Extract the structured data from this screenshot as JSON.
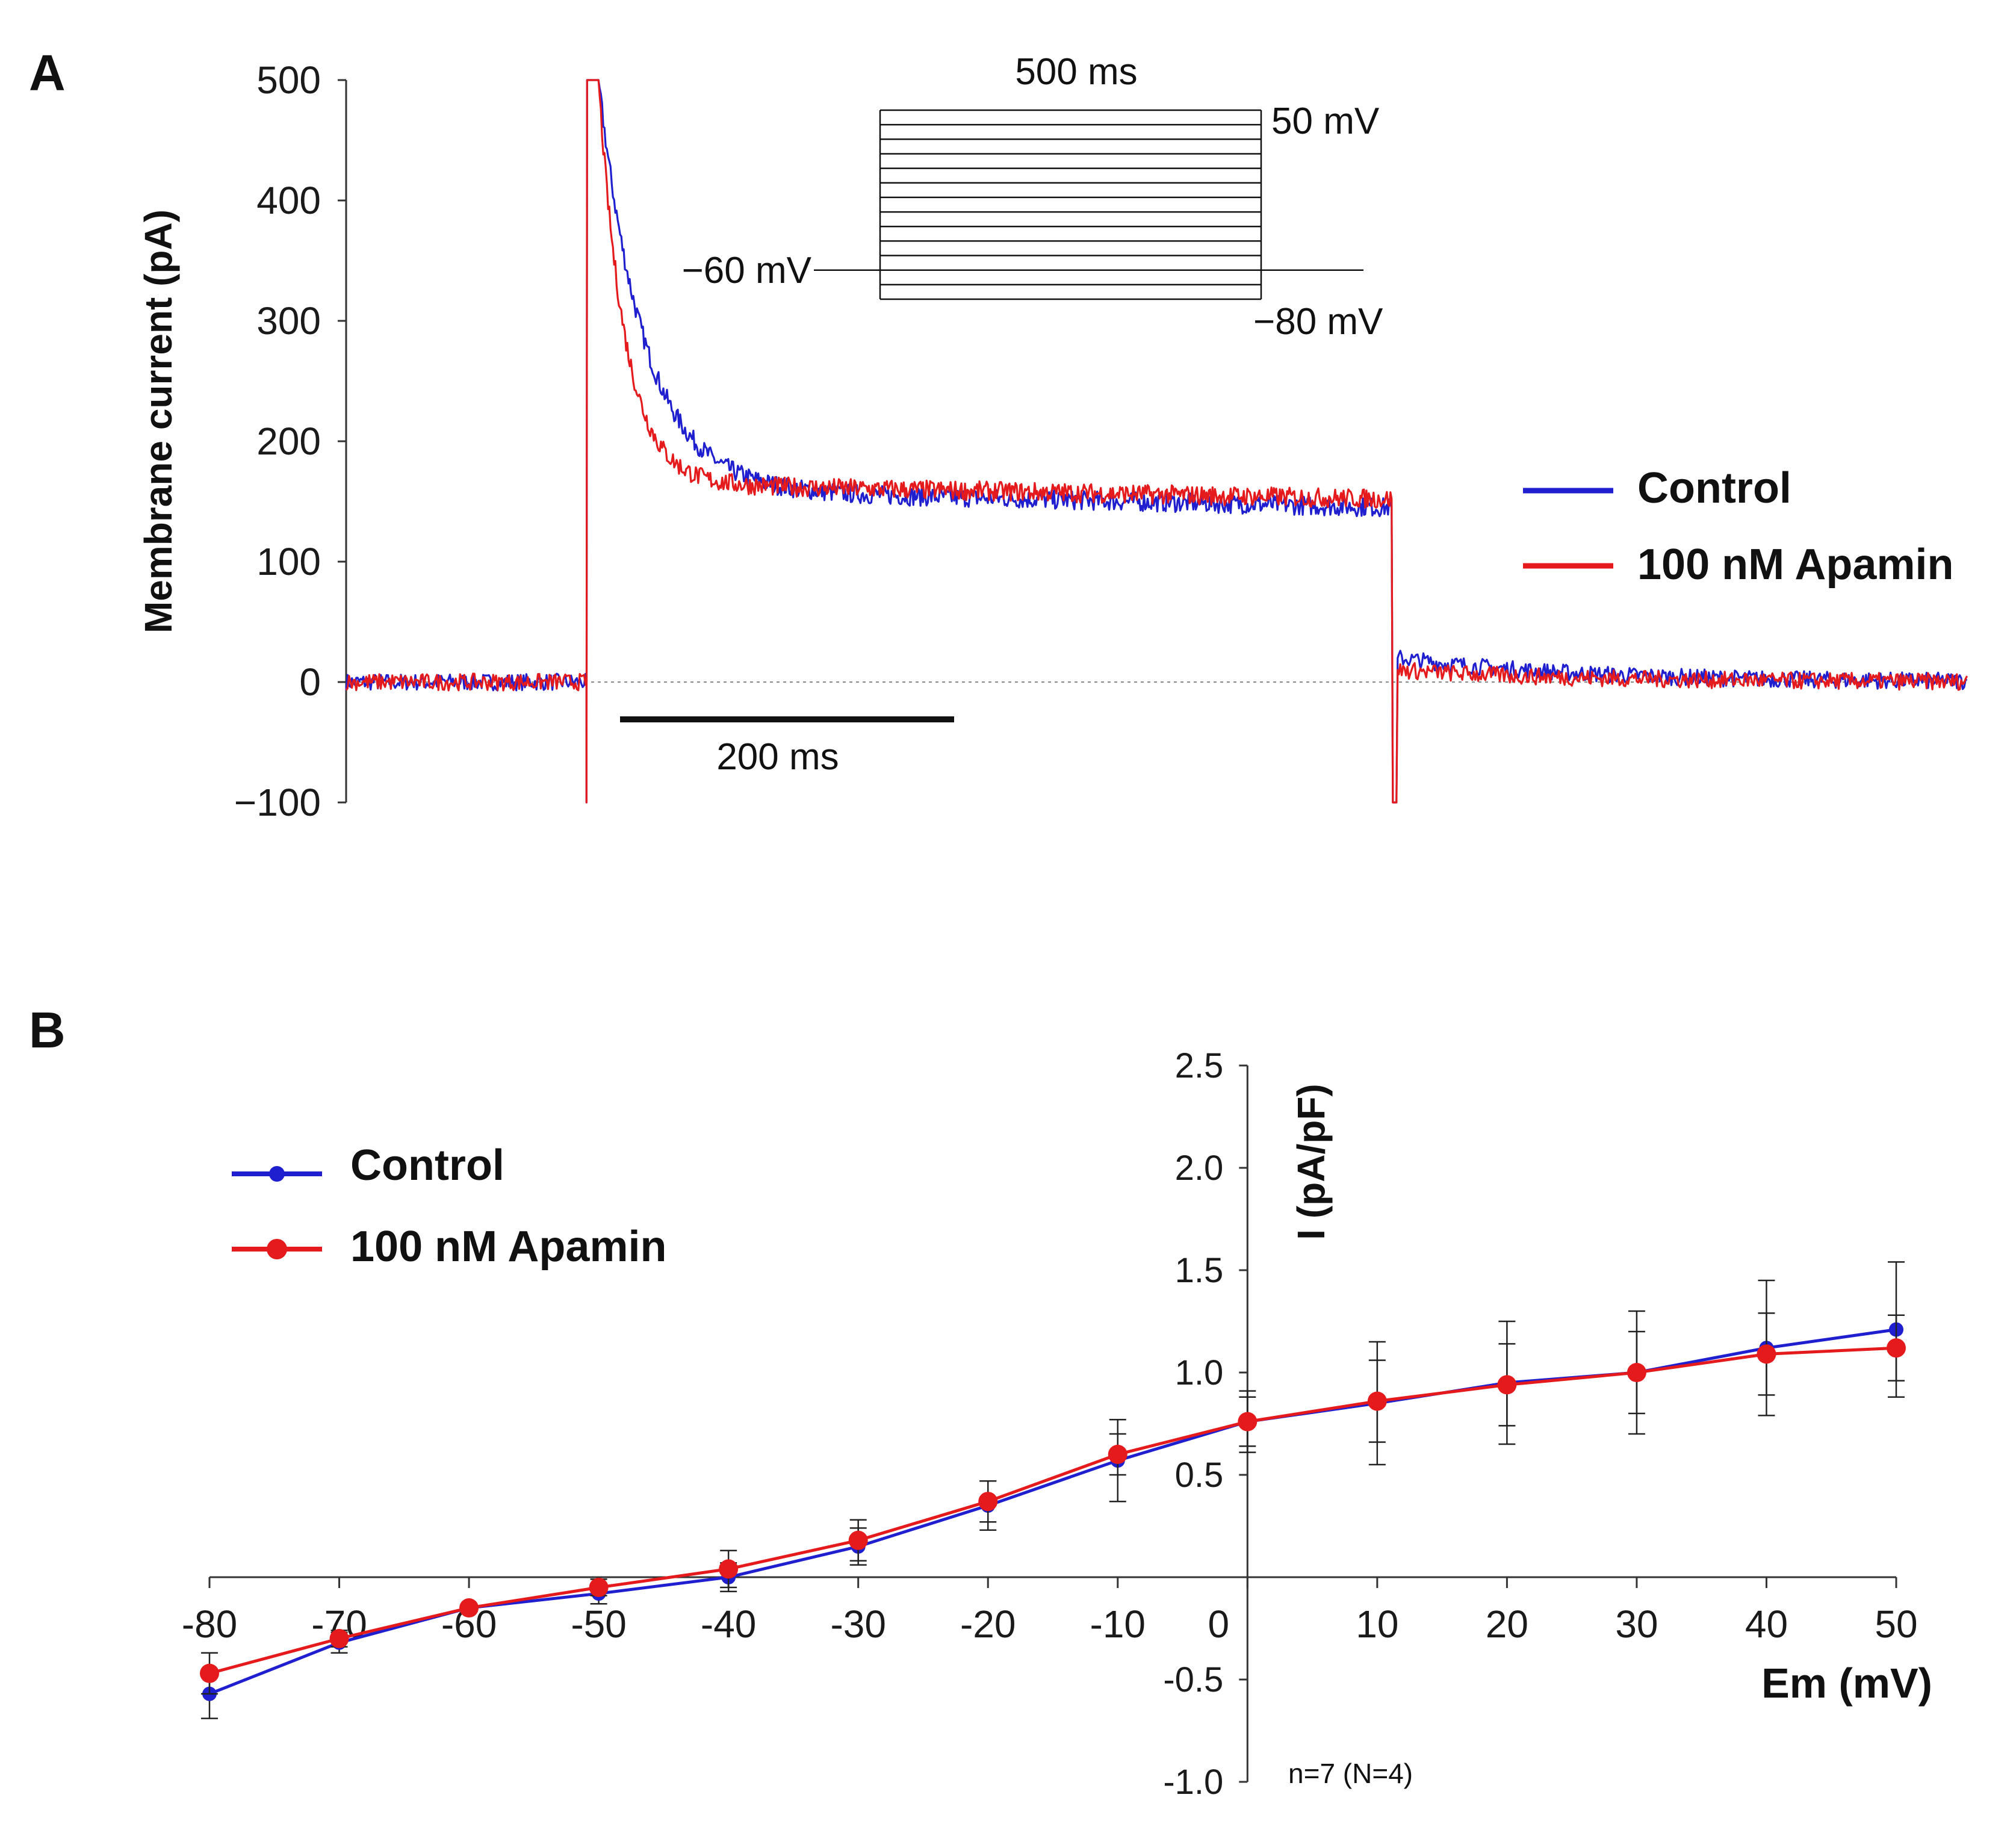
{
  "colors": {
    "control": "#1f1fd0",
    "apamin": "#e41a1c",
    "axis": "#333333",
    "ink": "#111111"
  },
  "panel_a": {
    "label": "A",
    "chart_data": {
      "type": "line",
      "ylabel": "Membrane current (pA)",
      "ylim": [
        -100,
        500
      ],
      "yticks": [
        500,
        400,
        300,
        200,
        100,
        0,
        -100
      ],
      "time_range_ms": [
        0,
        1350
      ],
      "pulse_on_ms": 200,
      "pulse_off_ms": 870,
      "series": [
        {
          "name": "Control",
          "color_key": "control",
          "peak": 500,
          "steady_early": 160,
          "steady_late": 145,
          "tail_peak": 20,
          "negative_spike": -100
        },
        {
          "name": "100 nM Apamin",
          "color_key": "apamin",
          "peak": 500,
          "steady_early": 165,
          "steady_late": 152,
          "tail_peak": 10,
          "negative_spike": -100
        }
      ],
      "scalebar_label": "200 ms",
      "inset": {
        "top_label": "500 ms",
        "max_label": "50 mV",
        "hold_label": "−60 mV",
        "min_label": "−80 mV",
        "steps_mv": [
          50,
          40,
          30,
          20,
          10,
          0,
          -10,
          -20,
          -30,
          -40,
          -50,
          -60,
          -70,
          -80
        ]
      }
    },
    "legend": [
      {
        "label": "Control",
        "color_key": "control"
      },
      {
        "label": "100 nM Apamin",
        "color_key": "apamin"
      }
    ]
  },
  "panel_b": {
    "label": "B",
    "chart_data": {
      "type": "line",
      "xlabel": "Em (mV)",
      "ylabel": "I (pA/pF)",
      "xlim": [
        -80,
        50
      ],
      "ylim": [
        -1.0,
        2.5
      ],
      "xticks": [
        "-80",
        "-70",
        "-60",
        "-50",
        "-40",
        "-30",
        "-20",
        "-10",
        "0",
        "10",
        "20",
        "30",
        "40",
        "50"
      ],
      "yticks": [
        "2.5",
        "2.0",
        "1.5",
        "1.0",
        "0.5",
        "-0.5",
        "-1.0"
      ],
      "x": [
        -80,
        -70,
        -60,
        -50,
        -40,
        -30,
        -20,
        -10,
        0,
        10,
        20,
        30,
        40,
        50
      ],
      "series": [
        {
          "name": "Control",
          "color_key": "control",
          "values": [
            -0.57,
            -0.32,
            -0.15,
            -0.08,
            0.0,
            0.15,
            0.35,
            0.57,
            0.76,
            0.85,
            0.95,
            1.0,
            1.12,
            1.21
          ],
          "err": [
            0.12,
            0.05,
            0.0,
            0.05,
            0.07,
            0.09,
            0.12,
            0.2,
            0.15,
            0.3,
            0.3,
            0.3,
            0.33,
            0.33
          ]
        },
        {
          "name": "100 nM Apamin",
          "color_key": "apamin",
          "values": [
            -0.47,
            -0.3,
            -0.15,
            -0.05,
            0.04,
            0.18,
            0.37,
            0.6,
            0.76,
            0.86,
            0.94,
            1.0,
            1.09,
            1.12
          ],
          "err": [
            0.1,
            0.04,
            0.0,
            0.04,
            0.09,
            0.1,
            0.1,
            0.1,
            0.12,
            0.2,
            0.2,
            0.2,
            0.2,
            0.16
          ]
        }
      ],
      "note": "n=7 (N=4)"
    },
    "legend": [
      {
        "label": "Control",
        "color_key": "control"
      },
      {
        "label": "100 nM Apamin",
        "color_key": "apamin"
      }
    ]
  }
}
